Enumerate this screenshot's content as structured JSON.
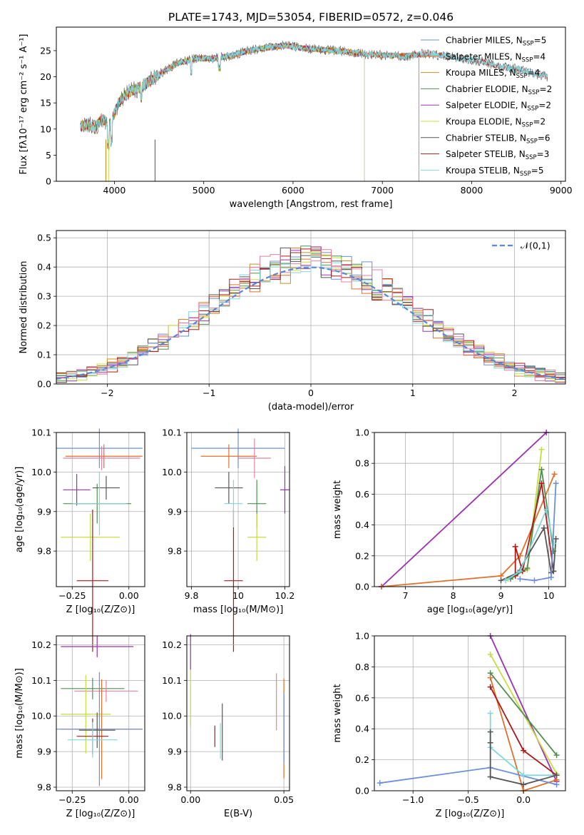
{
  "title": "PLATE=1743, MJD=53054, FIBERID=0572, z=0.046",
  "colors": {
    "Chabrier MILES": "#6c8fd9",
    "Salpeter MILES": "#e0702a",
    "Kroupa MILES": "#c8901e",
    "Chabrier ELODIE": "#4f8f4f",
    "Salpeter ELODIE": "#9b30b0",
    "Kroupa ELODIE": "#c8dc40",
    "Chabrier STELIB": "#555555",
    "Salpeter STELIB": "#b01818",
    "Kroupa STELIB": "#80d8dc",
    "pink": "#e87fa0",
    "gauss": "#5b87d6"
  },
  "chart_data": [
    {
      "id": "spectrum",
      "type": "line",
      "xlabel": "wavelength [Angstrom, rest frame]",
      "ylabel": "Flux [fλ10⁻¹⁷ erg cm⁻² s⁻¹ A⁻¹]",
      "xlim": [
        3350,
        9050
      ],
      "ylim": [
        0,
        29.5
      ],
      "xticks": [
        4000,
        5000,
        6000,
        7000,
        8000,
        9000
      ],
      "yticks": [
        0,
        5,
        10,
        15,
        20,
        25
      ],
      "grid": false,
      "legend_position": "top-right",
      "continuum": {
        "x": [
          3620,
          3700,
          3780,
          3850,
          3950,
          4050,
          4150,
          4300,
          4500,
          4700,
          4900,
          5100,
          5300,
          5500,
          5700,
          5900,
          6100,
          6300,
          6500,
          6700,
          6900,
          7100,
          7300,
          7500,
          7700,
          7900,
          8100,
          8300,
          8500,
          8700,
          8850
        ],
        "y": [
          10.5,
          11,
          10,
          12,
          11,
          15,
          17,
          18,
          20.5,
          22.5,
          23.5,
          23.5,
          24,
          25,
          25.5,
          26,
          25.5,
          25.2,
          25,
          24.5,
          24.2,
          24,
          24,
          24.5,
          24,
          23.5,
          23,
          22,
          21.5,
          20.5,
          20
        ]
      },
      "series": [
        {
          "name": "Chabrier MILES",
          "label": "Chabrier MILES, N",
          "sub": "SSP",
          "suffix": "=5",
          "end": 7410
        },
        {
          "name": "Salpeter MILES",
          "label": "Salpeter MILES, N",
          "sub": "SSP",
          "suffix": "=4",
          "end": 7410
        },
        {
          "name": "Kroupa MILES",
          "label": "Kroupa MILES, N",
          "sub": "SSP",
          "suffix": "=4",
          "end": 7410
        },
        {
          "name": "Chabrier ELODIE",
          "label": "Chabrier ELODIE, N",
          "sub": "SSP",
          "suffix": "=2",
          "end": 6800
        },
        {
          "name": "Salpeter ELODIE",
          "label": "Salpeter ELODIE, N",
          "sub": "SSP",
          "suffix": "=2",
          "end": 6800
        },
        {
          "name": "Kroupa ELODIE",
          "label": "Kroupa ELODIE, N",
          "sub": "SSP",
          "suffix": "=2",
          "end": 6800
        },
        {
          "name": "Chabrier STELIB",
          "label": "Chabrier STELIB, N",
          "sub": "SSP",
          "suffix": "=6",
          "end": 8850
        },
        {
          "name": "Salpeter STELIB",
          "label": "Salpeter STELIB, N",
          "sub": "SSP",
          "suffix": "=3",
          "end": 8850
        },
        {
          "name": "Kroupa STELIB",
          "label": "Kroupa STELIB, N",
          "sub": "SSP",
          "suffix": "=5",
          "end": 8850
        }
      ]
    },
    {
      "id": "residuals",
      "type": "bar",
      "xlabel": "(data-model)/error",
      "ylabel": "Normed distribution",
      "xlim": [
        -2.5,
        2.5
      ],
      "ylim": [
        0,
        0.525
      ],
      "xticks": [
        -2,
        -1,
        0,
        1,
        2
      ],
      "yticks": [
        0.0,
        0.1,
        0.2,
        0.3,
        0.4,
        0.5
      ],
      "grid": true,
      "legend_position": "top-right",
      "legend": "𝒩(0,1)",
      "bin_width": 0.1
    },
    {
      "id": "age_vs_Z",
      "type": "scatter",
      "xlabel": "Z [log₁₀(Z/Z⊙)]",
      "ylabel": "age  [log₁₀(age/yr)]",
      "xlim": [
        -0.32,
        0.07
      ],
      "ylim": [
        9.71,
        10.1
      ],
      "xticks": [
        -0.25,
        0.0
      ],
      "yticks": [
        9.8,
        9.9,
        10.0,
        10.1
      ],
      "xtick_labels": [
        "−0.25",
        "0.00"
      ],
      "grid": true,
      "points": [
        {
          "c": "Chabrier MILES",
          "x": -0.13,
          "y": 10.06,
          "xe": 0.19,
          "ye": 0.05
        },
        {
          "c": "Salpeter MILES",
          "x": -0.11,
          "y": 10.04,
          "xe": 0.17,
          "ye": 0.03
        },
        {
          "c": "pink",
          "x": -0.12,
          "y": 10.035,
          "xe": 0.17,
          "ye": 0.03
        },
        {
          "c": "Chabrier ELODIE",
          "x": -0.14,
          "y": 9.92,
          "xe": 0.15,
          "ye": 0.05
        },
        {
          "c": "Salpeter ELODIE",
          "x": -0.23,
          "y": 9.955,
          "xe": 0.06,
          "ye": 0.04
        },
        {
          "c": "Kroupa ELODIE",
          "x": -0.17,
          "y": 9.835,
          "xe": 0.13,
          "ye": 0.06
        },
        {
          "c": "Chabrier STELIB",
          "x": -0.1,
          "y": 9.96,
          "xe": 0.06,
          "ye": 0.03
        },
        {
          "c": "Salpeter STELIB",
          "x": -0.16,
          "y": 9.725,
          "xe": 0.07,
          "ye": 0.18
        },
        {
          "c": "Kroupa STELIB",
          "x": -0.13,
          "y": 9.92,
          "xe": 0.12,
          "ye": 0.08
        }
      ]
    },
    {
      "id": "age_vs_mass",
      "type": "scatter",
      "xlabel": "mass [log₁₀(M/M⊙)]",
      "ylabel": "",
      "xlim": [
        9.78,
        10.22
      ],
      "ylim": [
        9.71,
        10.1
      ],
      "xticks": [
        9.8,
        10.0,
        10.2
      ],
      "yticks": [
        9.8,
        9.9,
        10.0,
        10.1
      ],
      "grid": true,
      "points": [
        {
          "c": "Chabrier MILES",
          "x": 10.0,
          "y": 10.06,
          "xe": 0.2,
          "ye": 0.05
        },
        {
          "c": "Salpeter MILES",
          "x": 9.96,
          "y": 10.04,
          "xe": 0.12,
          "ye": 0.03
        },
        {
          "c": "pink",
          "x": 10.07,
          "y": 10.035,
          "xe": 0.07,
          "ye": 0.05
        },
        {
          "c": "Chabrier ELODIE",
          "x": 10.08,
          "y": 9.92,
          "xe": 0.04,
          "ye": 0.06
        },
        {
          "c": "Salpeter ELODIE",
          "x": 10.2,
          "y": 9.955,
          "xe": 0.02,
          "ye": 0.06
        },
        {
          "c": "Kroupa ELODIE",
          "x": 10.08,
          "y": 9.835,
          "xe": 0.04,
          "ye": 0.06
        },
        {
          "c": "Chabrier STELIB",
          "x": 9.96,
          "y": 9.96,
          "xe": 0.06,
          "ye": 0.04
        },
        {
          "c": "Salpeter STELIB",
          "x": 9.98,
          "y": 9.725,
          "xe": 0.04,
          "ye": 0.18
        },
        {
          "c": "Kroupa STELIB",
          "x": 9.98,
          "y": 9.92,
          "xe": 0.04,
          "ye": 0.06
        }
      ]
    },
    {
      "id": "weight_vs_age",
      "type": "line",
      "xlabel": "age  [log₁₀(age/yr)]",
      "ylabel": "mass weight",
      "xlim": [
        6.35,
        10.35
      ],
      "ylim": [
        0,
        1
      ],
      "xticks": [
        7,
        8,
        9,
        10
      ],
      "yticks": [
        0.0,
        0.2,
        0.4,
        0.6,
        0.8,
        1.0
      ],
      "grid": true,
      "series": [
        {
          "c": "Salpeter ELODIE",
          "x": [
            6.5,
            9.95
          ],
          "y": [
            0.0,
            1.0
          ]
        },
        {
          "c": "Salpeter MILES",
          "x": [
            6.5,
            9.0,
            9.4,
            10.12
          ],
          "y": [
            0.0,
            0.07,
            0.2,
            0.73
          ]
        },
        {
          "c": "Kroupa ELODIE",
          "x": [
            9.15,
            9.55,
            9.85
          ],
          "y": [
            0.05,
            0.11,
            0.89
          ]
        },
        {
          "c": "Chabrier ELODIE",
          "x": [
            9.2,
            9.55,
            9.85,
            10.1
          ],
          "y": [
            0.05,
            0.12,
            0.76,
            0.23
          ]
        },
        {
          "c": "Salpeter STELIB",
          "x": [
            9.3,
            9.3,
            9.45,
            9.85,
            10.1
          ],
          "y": [
            0.07,
            0.26,
            0.1,
            0.67,
            0.1
          ]
        },
        {
          "c": "Chabrier STELIB",
          "x": [
            9.0,
            9.35,
            9.9,
            10.05,
            10.1,
            10.15
          ],
          "y": [
            0.04,
            0.09,
            0.38,
            0.09,
            0.1,
            0.31
          ]
        },
        {
          "c": "Kroupa STELIB",
          "x": [
            9.1,
            9.4,
            9.95,
            10.1
          ],
          "y": [
            0.04,
            0.1,
            0.5,
            0.28
          ]
        },
        {
          "c": "Chabrier MILES",
          "x": [
            9.4,
            9.7,
            10.05,
            10.15
          ],
          "y": [
            0.05,
            0.04,
            0.06,
            0.67
          ]
        }
      ]
    },
    {
      "id": "mass_vs_Z",
      "type": "scatter",
      "xlabel": "Z [log₁₀(Z/Z⊙)]",
      "ylabel": "mass [log₁₀(M/M⊙)]",
      "xlim": [
        -0.32,
        0.07
      ],
      "ylim": [
        9.79,
        10.225
      ],
      "xticks": [
        -0.25,
        0.0
      ],
      "yticks": [
        9.8,
        9.9,
        10.0,
        10.1,
        10.2
      ],
      "xtick_labels": [
        "−0.25",
        "0.00"
      ],
      "grid": true,
      "points": [
        {
          "c": "Salpeter ELODIE",
          "x": -0.14,
          "y": 10.195,
          "xe": 0.16,
          "ye": 0.03
        },
        {
          "c": "Chabrier ELODIE",
          "x": -0.16,
          "y": 10.077,
          "xe": 0.14,
          "ye": 0.03
        },
        {
          "c": "pink",
          "x": -0.1,
          "y": 10.07,
          "xe": 0.14,
          "ye": 0.03
        },
        {
          "c": "Kroupa ELODIE",
          "x": -0.19,
          "y": 10.005,
          "xe": 0.11,
          "ye": 0.11
        },
        {
          "c": "Salpeter MILES",
          "x": -0.12,
          "y": 9.963,
          "xe": 0.18,
          "ye": 0.14
        },
        {
          "c": "Chabrier MILES",
          "x": -0.13,
          "y": 9.963,
          "xe": 0.19,
          "ye": 0.16
        },
        {
          "c": "Chabrier STELIB",
          "x": -0.14,
          "y": 9.96,
          "xe": 0.08,
          "ye": 0.05
        },
        {
          "c": "Salpeter STELIB",
          "x": -0.16,
          "y": 9.943,
          "xe": 0.07,
          "ye": 0.05
        },
        {
          "c": "Kroupa STELIB",
          "x": -0.16,
          "y": 9.933,
          "xe": 0.11,
          "ye": 0.05
        }
      ]
    },
    {
      "id": "mass_vs_ebv",
      "type": "scatter",
      "xlabel": "E(B-V)",
      "ylabel": "",
      "xlim": [
        -0.002,
        0.053
      ],
      "ylim": [
        9.79,
        10.225
      ],
      "xticks": [
        0.0,
        0.05
      ],
      "yticks": [
        9.8,
        9.9,
        10.0,
        10.1,
        10.2
      ],
      "xtick_labels": [
        "0.00",
        "0.05"
      ],
      "grid": true,
      "points": [
        {
          "c": "Salpeter ELODIE",
          "x": 0.0,
          "y": 10.18,
          "ye": 0.05
        },
        {
          "c": "Kroupa ELODIE",
          "x": 0.0,
          "y": 10.05,
          "ye": 0.08
        },
        {
          "c": "Salpeter STELIB",
          "x": 0.013,
          "y": 9.943,
          "ye": 0.03
        },
        {
          "c": "Kroupa STELIB",
          "x": 0.016,
          "y": 9.93,
          "ye": 0.05
        },
        {
          "c": "Chabrier STELIB",
          "x": 0.017,
          "y": 9.955,
          "ye": 0.08
        },
        {
          "c": "pink",
          "x": 0.046,
          "y": 10.04,
          "ye": 0.08
        },
        {
          "c": "Salpeter MILES",
          "x": 0.05,
          "y": 9.965,
          "ye": 0.14
        },
        {
          "c": "Chabrier MILES",
          "x": 0.05,
          "y": 9.965,
          "ye": 0.1
        }
      ]
    },
    {
      "id": "weight_vs_Z",
      "type": "line",
      "xlabel": "Z [log₁₀(Z/Z⊙)]",
      "ylabel": "mass weight",
      "xlim": [
        -1.35,
        0.38
      ],
      "ylim": [
        0,
        1
      ],
      "xticks": [
        -1.0,
        -0.5,
        0.0
      ],
      "yticks": [
        0.0,
        0.2,
        0.4,
        0.6,
        0.8,
        1.0
      ],
      "xtick_labels": [
        "−1.0",
        "−0.5",
        "0.0"
      ],
      "grid": true,
      "series": [
        {
          "c": "Salpeter ELODIE",
          "x": [
            -0.3,
            0.3
          ],
          "y": [
            1.0,
            0.06
          ]
        },
        {
          "c": "Kroupa ELODIE",
          "x": [
            -0.3,
            0.3
          ],
          "y": [
            0.88,
            0.11
          ]
        },
        {
          "c": "Chabrier ELODIE",
          "x": [
            -0.3,
            0.3
          ],
          "y": [
            0.76,
            0.23
          ]
        },
        {
          "c": "Salpeter MILES",
          "x": [
            -0.3,
            0.0,
            0.3
          ],
          "y": [
            0.73,
            0.0,
            0.07
          ]
        },
        {
          "c": "Salpeter STELIB",
          "x": [
            -0.3,
            0.0,
            0.3
          ],
          "y": [
            0.67,
            0.26,
            0.1
          ]
        },
        {
          "c": "Chabrier MILES",
          "x": [
            -1.3,
            -0.3,
            0.3
          ],
          "y": [
            0.05,
            0.15,
            0.04
          ]
        },
        {
          "c": "Kroupa STELIB",
          "x": [
            -0.3,
            -0.3,
            0.0,
            0.3
          ],
          "y": [
            0.5,
            0.28,
            0.1,
            0.1
          ]
        },
        {
          "c": "Chabrier STELIB",
          "x": [
            -0.3,
            -0.3,
            -0.3,
            0.0,
            0.3
          ],
          "y": [
            0.38,
            0.31,
            0.09,
            0.04,
            0.1
          ]
        }
      ]
    }
  ]
}
